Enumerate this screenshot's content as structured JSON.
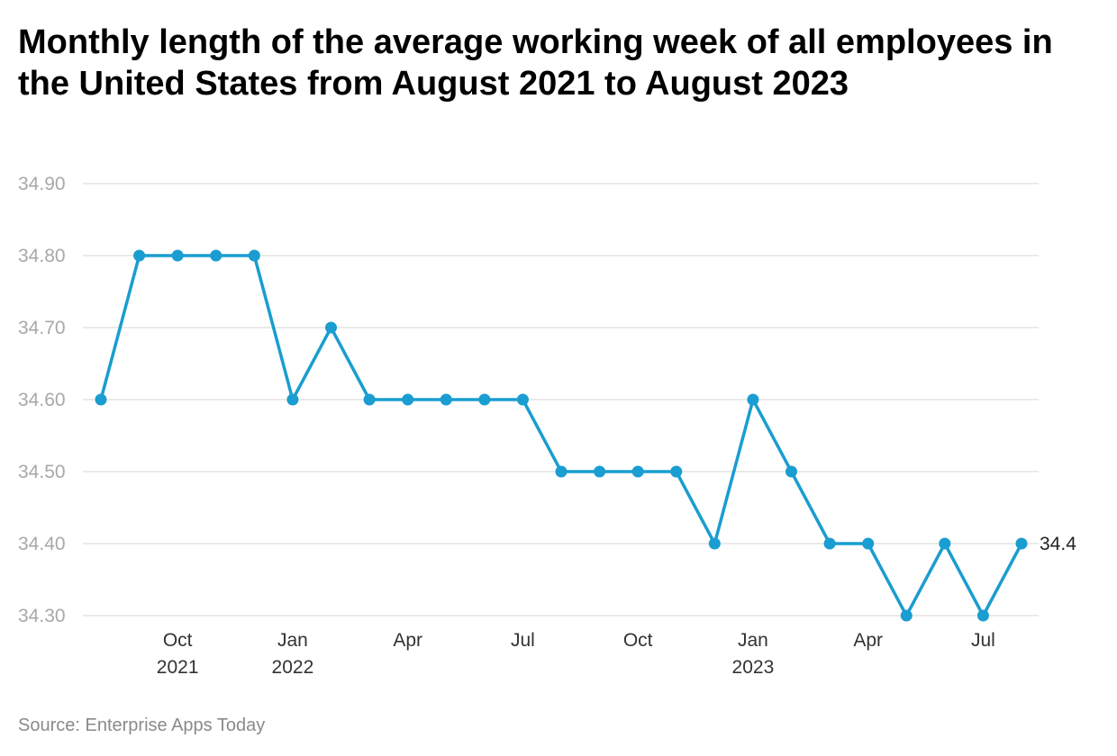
{
  "title": "Monthly length of the average working week of all employees in the United States from August 2021 to August 2023",
  "source": "Source: Enterprise Apps Today",
  "colors": {
    "line": "#1a9dd0",
    "grid": "#e3e3e3",
    "axis_text": "#a8a8a8"
  },
  "chart_data": {
    "type": "line",
    "title": "Monthly length of the average working week of all employees in the United States from August 2021 to August 2023",
    "xlabel": "",
    "ylabel": "",
    "ylim": [
      34.3,
      34.9
    ],
    "yticks": [
      "34.90",
      "34.80",
      "34.70",
      "34.60",
      "34.50",
      "34.40",
      "34.30"
    ],
    "ytick_values": [
      34.9,
      34.8,
      34.7,
      34.6,
      34.5,
      34.4,
      34.3
    ],
    "grid": true,
    "x": [
      "2021-08",
      "2021-09",
      "2021-10",
      "2021-11",
      "2021-12",
      "2022-01",
      "2022-02",
      "2022-03",
      "2022-04",
      "2022-05",
      "2022-06",
      "2022-07",
      "2022-08",
      "2022-09",
      "2022-10",
      "2022-11",
      "2022-12",
      "2023-01",
      "2023-02",
      "2023-03",
      "2023-04",
      "2023-05",
      "2023-06",
      "2023-07",
      "2023-08"
    ],
    "series": [
      {
        "values": [
          34.6,
          34.8,
          34.8,
          34.8,
          34.8,
          34.6,
          34.7,
          34.6,
          34.6,
          34.6,
          34.6,
          34.6,
          34.5,
          34.5,
          34.5,
          34.5,
          34.4,
          34.6,
          34.5,
          34.4,
          34.4,
          34.3,
          34.4,
          34.3,
          34.4
        ]
      }
    ],
    "xticks": [
      {
        "at": "2021-10",
        "label": "Oct",
        "sublabel": "2021"
      },
      {
        "at": "2022-01",
        "label": "Jan",
        "sublabel": "2022"
      },
      {
        "at": "2022-04",
        "label": "Apr",
        "sublabel": ""
      },
      {
        "at": "2022-07",
        "label": "Jul",
        "sublabel": ""
      },
      {
        "at": "2022-10",
        "label": "Oct",
        "sublabel": ""
      },
      {
        "at": "2023-01",
        "label": "Jan",
        "sublabel": "2023"
      },
      {
        "at": "2023-04",
        "label": "Apr",
        "sublabel": ""
      },
      {
        "at": "2023-07",
        "label": "Jul",
        "sublabel": ""
      }
    ],
    "end_label": "34.4"
  }
}
